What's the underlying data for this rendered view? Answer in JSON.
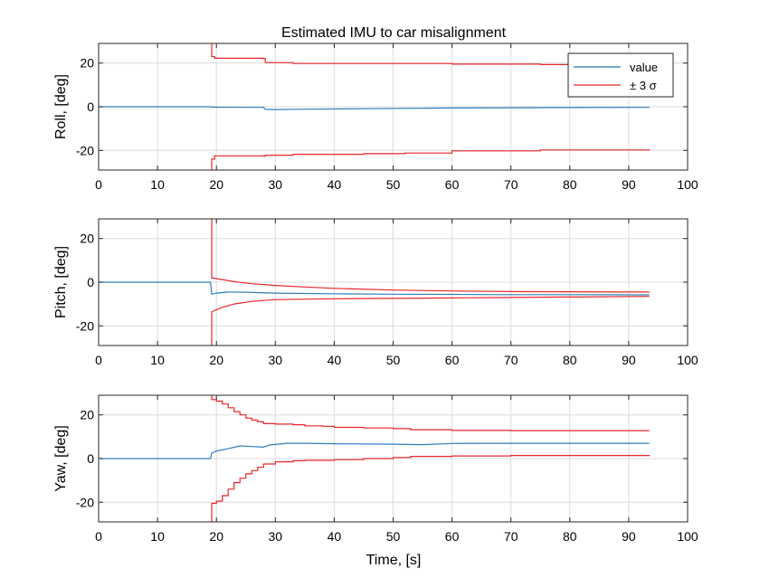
{
  "chart_data": {
    "type": "line",
    "title": "Estimated IMU to car misalignment",
    "xlabel": "Time, [s]",
    "xlim": [
      0,
      100
    ],
    "xticks": [
      0,
      10,
      20,
      30,
      40,
      50,
      60,
      70,
      80,
      90,
      100
    ],
    "grid": true,
    "legend": {
      "placement": "top-right",
      "entries": [
        {
          "label": "value",
          "color": "#1f77b4"
        },
        {
          "label": "± 3 σ",
          "color": "#e8262a"
        }
      ]
    },
    "colors": {
      "value": "#2e7ebf",
      "sigma": "#e8262a"
    },
    "subplots": [
      {
        "ylabel": "Roll, [deg]",
        "ylim": [
          -29,
          29
        ],
        "yticks": [
          -20,
          0,
          20
        ],
        "yticklabels": [
          "-20",
          "0",
          "20"
        ],
        "series": [
          {
            "name": "value",
            "color": "#2e7ebf",
            "points": [
              [
                0,
                0
              ],
              [
                19,
                0
              ],
              [
                19.2,
                -0.2
              ],
              [
                28,
                -0.3
              ],
              [
                28.3,
                -1.2
              ],
              [
                30,
                -1.3
              ],
              [
                35,
                -1.1
              ],
              [
                45,
                -0.9
              ],
              [
                60,
                -0.6
              ],
              [
                75,
                -0.4
              ],
              [
                93.5,
                -0.3
              ]
            ]
          },
          {
            "name": "± 3 σ upper",
            "color": "#e8262a",
            "step": true,
            "points": [
              [
                0,
                29.5
              ],
              [
                19.2,
                29.5
              ],
              [
                19.2,
                23
              ],
              [
                19.7,
                22.2
              ],
              [
                28,
                22
              ],
              [
                28.3,
                20.2
              ],
              [
                33,
                19.8
              ],
              [
                45,
                19.8
              ],
              [
                60,
                19.5
              ],
              [
                75,
                19.3
              ],
              [
                93.5,
                19
              ]
            ]
          },
          {
            "name": "± 3 σ lower",
            "color": "#e8262a",
            "step": true,
            "points": [
              [
                0,
                -29.5
              ],
              [
                19.2,
                -29.5
              ],
              [
                19.2,
                -24
              ],
              [
                19.7,
                -22.5
              ],
              [
                28,
                -22.6
              ],
              [
                28.3,
                -22.2
              ],
              [
                33,
                -21.8
              ],
              [
                45,
                -21.5
              ],
              [
                52,
                -21.2
              ],
              [
                60,
                -20.2
              ],
              [
                75,
                -19.8
              ],
              [
                93.5,
                -19.5
              ]
            ]
          }
        ]
      },
      {
        "ylabel": "Pitch, [deg]",
        "ylim": [
          -29,
          29
        ],
        "yticks": [
          -20,
          0,
          20
        ],
        "yticklabels": [
          "-20",
          "0",
          "20"
        ],
        "series": [
          {
            "name": "value",
            "color": "#2e7ebf",
            "points": [
              [
                0,
                0
              ],
              [
                19,
                0
              ],
              [
                19.2,
                -5.5
              ],
              [
                20,
                -5
              ],
              [
                22,
                -4.5
              ],
              [
                25,
                -4.6
              ],
              [
                30,
                -5
              ],
              [
                40,
                -5.3
              ],
              [
                50,
                -5.5
              ],
              [
                60,
                -5.6
              ],
              [
                70,
                -5.7
              ],
              [
                80,
                -5.7
              ],
              [
                93.5,
                -5.8
              ]
            ]
          },
          {
            "name": "± 3 σ upper",
            "color": "#e8262a",
            "points": [
              [
                0,
                29.5
              ],
              [
                19.2,
                29.5
              ],
              [
                19.2,
                2
              ],
              [
                21,
                1.2
              ],
              [
                23,
                0.3
              ],
              [
                26,
                -0.7
              ],
              [
                30,
                -1.5
              ],
              [
                35,
                -2.2
              ],
              [
                40,
                -2.8
              ],
              [
                50,
                -3.6
              ],
              [
                60,
                -4
              ],
              [
                70,
                -4.3
              ],
              [
                80,
                -4.4
              ],
              [
                93.5,
                -4.5
              ]
            ]
          },
          {
            "name": "± 3 σ lower",
            "color": "#e8262a",
            "points": [
              [
                0,
                -29.5
              ],
              [
                19.2,
                -29.5
              ],
              [
                19.2,
                -13.5
              ],
              [
                21,
                -11.5
              ],
              [
                23,
                -10
              ],
              [
                26,
                -8.8
              ],
              [
                30,
                -8
              ],
              [
                35,
                -7.8
              ],
              [
                40,
                -7.6
              ],
              [
                50,
                -7.4
              ],
              [
                60,
                -7.2
              ],
              [
                70,
                -7
              ],
              [
                80,
                -6.8
              ],
              [
                93.5,
                -6.5
              ]
            ]
          }
        ]
      },
      {
        "ylabel": "Yaw, [deg]",
        "ylim": [
          -29,
          29
        ],
        "yticks": [
          -20,
          0,
          20
        ],
        "yticklabels": [
          "-20",
          "0",
          "20"
        ],
        "series": [
          {
            "name": "value",
            "color": "#2e7ebf",
            "points": [
              [
                0,
                0
              ],
              [
                19,
                0
              ],
              [
                19.2,
                2.5
              ],
              [
                20,
                3.5
              ],
              [
                22,
                4.5
              ],
              [
                24,
                5.8
              ],
              [
                26,
                5.5
              ],
              [
                28,
                5.2
              ],
              [
                29,
                6.2
              ],
              [
                32,
                7
              ],
              [
                35,
                7
              ],
              [
                40,
                6.8
              ],
              [
                50,
                6.6
              ],
              [
                55,
                6.4
              ],
              [
                60,
                6.9
              ],
              [
                70,
                7
              ],
              [
                93.5,
                7
              ]
            ]
          },
          {
            "name": "± 3 σ upper",
            "color": "#e8262a",
            "step": true,
            "points": [
              [
                0,
                29.5
              ],
              [
                19.2,
                29.5
              ],
              [
                19.2,
                27
              ],
              [
                20,
                26.3
              ],
              [
                21,
                25
              ],
              [
                22,
                23.3
              ],
              [
                23,
                21.5
              ],
              [
                24,
                20
              ],
              [
                25,
                18.5
              ],
              [
                26,
                17.6
              ],
              [
                27,
                16.8
              ],
              [
                28,
                16
              ],
              [
                30,
                15.8
              ],
              [
                33,
                15.5
              ],
              [
                35,
                15
              ],
              [
                38,
                14.8
              ],
              [
                40,
                14.3
              ],
              [
                45,
                14
              ],
              [
                50,
                13.7
              ],
              [
                53,
                13.2
              ],
              [
                60,
                12.9
              ],
              [
                70,
                12.8
              ],
              [
                93.5,
                12.8
              ]
            ]
          },
          {
            "name": "± 3 σ lower",
            "color": "#e8262a",
            "step": true,
            "points": [
              [
                0,
                -29.5
              ],
              [
                19.2,
                -29.5
              ],
              [
                19.2,
                -20.5
              ],
              [
                20,
                -19.5
              ],
              [
                21,
                -17
              ],
              [
                22,
                -14
              ],
              [
                23,
                -11
              ],
              [
                24,
                -9
              ],
              [
                25,
                -7
              ],
              [
                26,
                -5.5
              ],
              [
                27,
                -4
              ],
              [
                28,
                -2.5
              ],
              [
                30,
                -1.5
              ],
              [
                33,
                -1
              ],
              [
                35,
                -0.8
              ],
              [
                40,
                -0.5
              ],
              [
                45,
                0
              ],
              [
                50,
                0.5
              ],
              [
                53,
                1
              ],
              [
                60,
                1.2
              ],
              [
                70,
                1.4
              ],
              [
                93.5,
                1.6
              ]
            ]
          }
        ]
      }
    ]
  }
}
